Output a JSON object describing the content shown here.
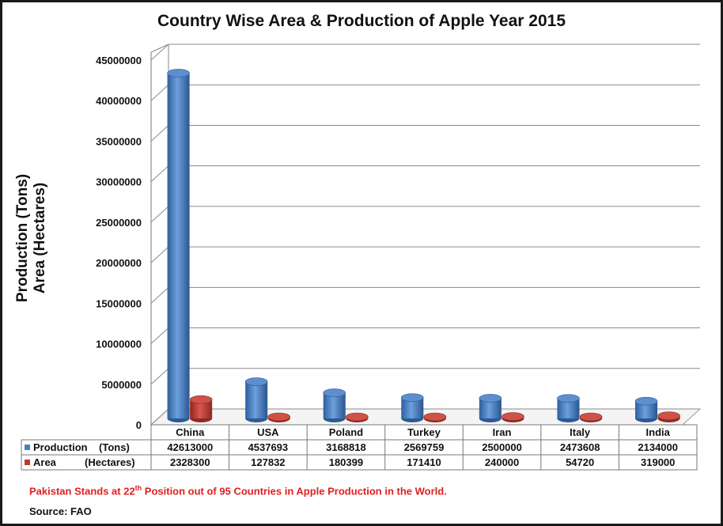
{
  "chart_data": {
    "type": "bar",
    "title": "Country Wise Area & Production of Apple Year 2015",
    "ylabel_line1": "Production (Tons)",
    "ylabel_line2": "Area (Hectares)",
    "ylim": [
      0,
      45000000
    ],
    "yticks": [
      "0",
      "5000000",
      "10000000",
      "15000000",
      "20000000",
      "25000000",
      "30000000",
      "35000000",
      "40000000",
      "45000000"
    ],
    "categories": [
      "China",
      "USA",
      "Poland",
      "Turkey",
      "Iran",
      "Italy",
      "India"
    ],
    "series": [
      {
        "name": "Production    (Tons)",
        "color": "#4a7ebb",
        "values": [
          42613000,
          4537693,
          3168818,
          2569759,
          2500000,
          2473608,
          2134000
        ]
      },
      {
        "name": "Area          (Hectares)",
        "color": "#c0392b",
        "values": [
          2328300,
          127832,
          180399,
          171410,
          240000,
          54720,
          319000
        ]
      }
    ],
    "grid": true,
    "legend": "data-table"
  },
  "note": {
    "prefix": "Pakistan Stands at 22",
    "sup": "th",
    "suffix": " Position out of 95 Countries in Apple Production in the World."
  },
  "source": "Source: FAO"
}
